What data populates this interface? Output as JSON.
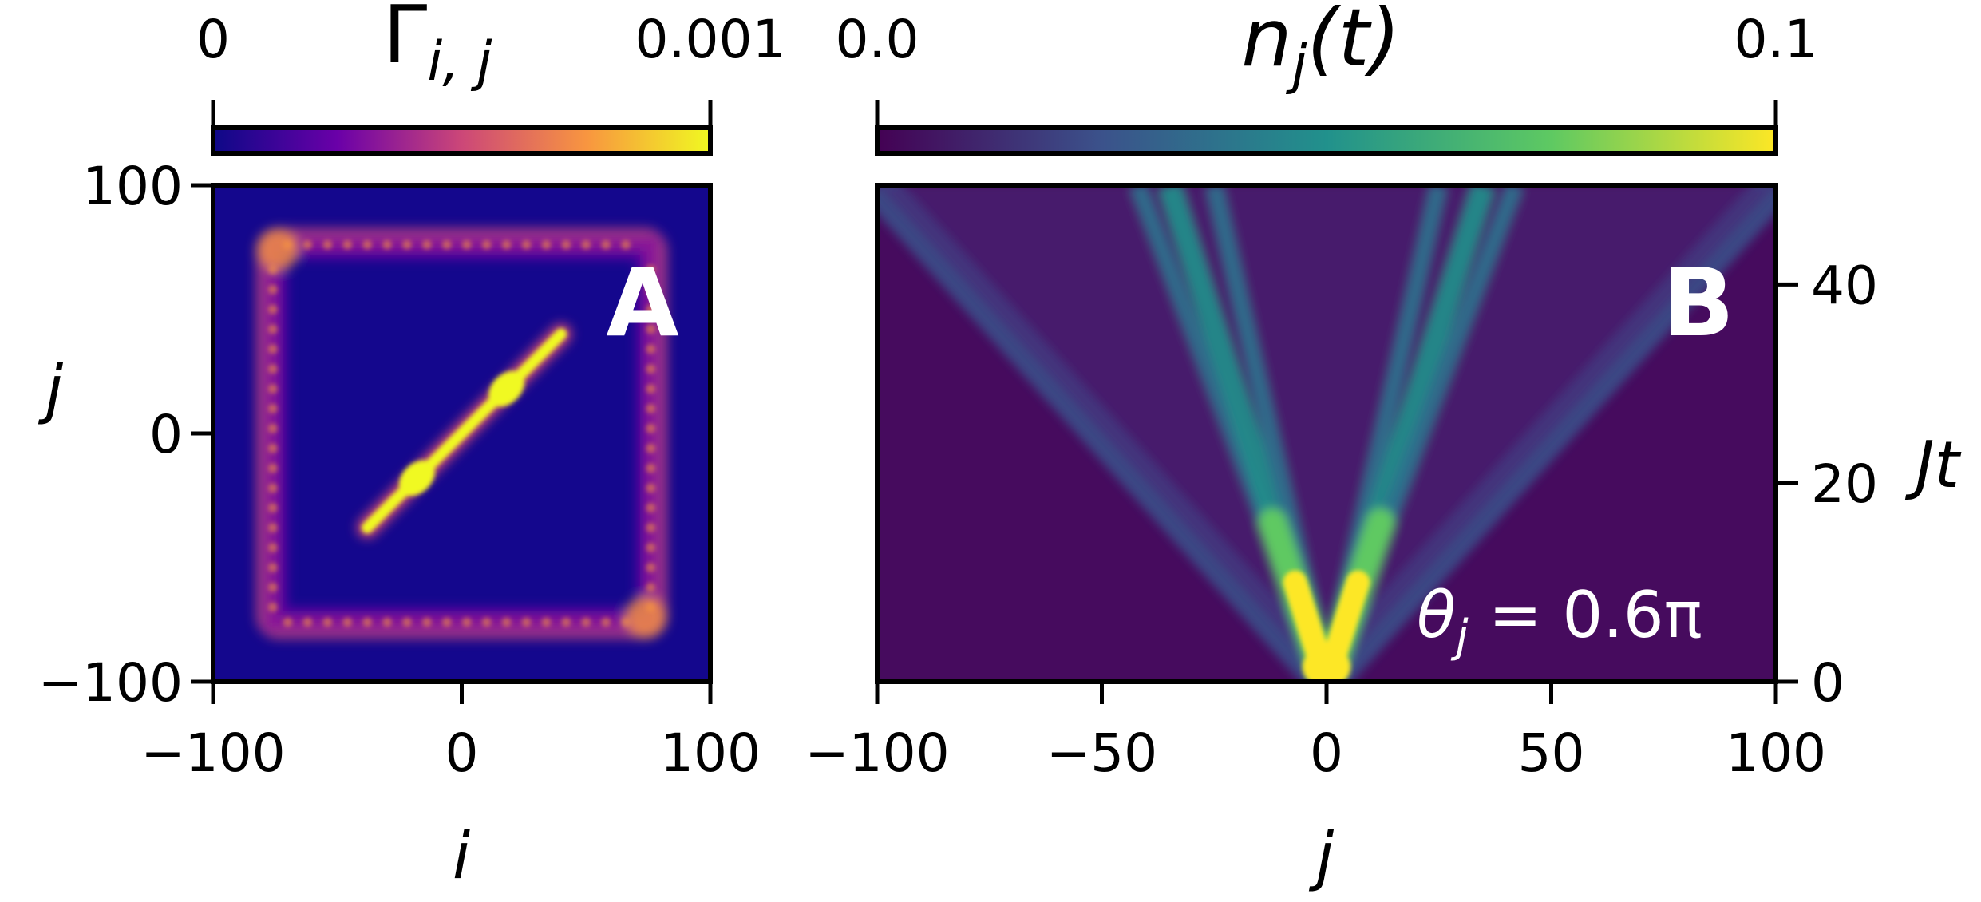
{
  "chart_data": [
    {
      "panel": "A",
      "type": "heatmap",
      "title": "Γ_{i,j}",
      "title_main": "Γ",
      "title_sub": "i, j",
      "xlabel": "i",
      "ylabel": "j",
      "xlim": [
        -100,
        100
      ],
      "ylim": [
        -100,
        100
      ],
      "xticks": [
        -100,
        0,
        100
      ],
      "yticks": [
        -100,
        0,
        100
      ],
      "xtick_labels": [
        "−100",
        "0",
        "100"
      ],
      "ytick_labels": [
        "−100",
        "0",
        "100"
      ],
      "colormap": "plasma",
      "colorbar": {
        "min_label": "0",
        "max_label": "0.001",
        "range": [
          0,
          0.001
        ]
      },
      "features": {
        "diagonal_segment": {
          "from": [
            -38,
            -38
          ],
          "to": [
            40,
            40
          ],
          "bright_spots": [
            [
              -18,
              -18
            ],
            [
              18,
              18
            ]
          ]
        },
        "square_ring_half_width": 78
      }
    },
    {
      "panel": "B",
      "type": "heatmap",
      "title": "n_j(t)",
      "title_main": "n",
      "title_sub": "j",
      "title_tail": "(t)",
      "xlabel": "j",
      "ylabel": "Jt",
      "xlim": [
        -100,
        100
      ],
      "ylim": [
        0,
        50
      ],
      "xticks": [
        -100,
        -50,
        0,
        50,
        100
      ],
      "yticks": [
        0,
        20,
        40
      ],
      "xtick_labels": [
        "−100",
        "−50",
        "0",
        "50",
        "100"
      ],
      "ytick_labels": [
        "0",
        "20",
        "40"
      ],
      "colormap": "viridis",
      "colorbar": {
        "min_label": "0.0",
        "max_label": "0.1",
        "range": [
          0,
          0.1
        ]
      },
      "annotation": {
        "main": "θ",
        "sub": "j",
        "tail": " = 0.6π"
      },
      "features": {
        "light_cone_edges_j_at_Jt50": [
          -100,
          100
        ],
        "inner_rays_j_at_Jt50": [
          -42,
          -35,
          -25,
          25,
          35,
          42
        ]
      }
    }
  ],
  "colors": {
    "plasma_dark": "#0d0887",
    "plasma_mid": "#cc4778",
    "plasma_bright": "#f0f921",
    "viridis_dark": "#440154",
    "viridis_mid": "#21918c",
    "viridis_bright": "#fde725"
  }
}
